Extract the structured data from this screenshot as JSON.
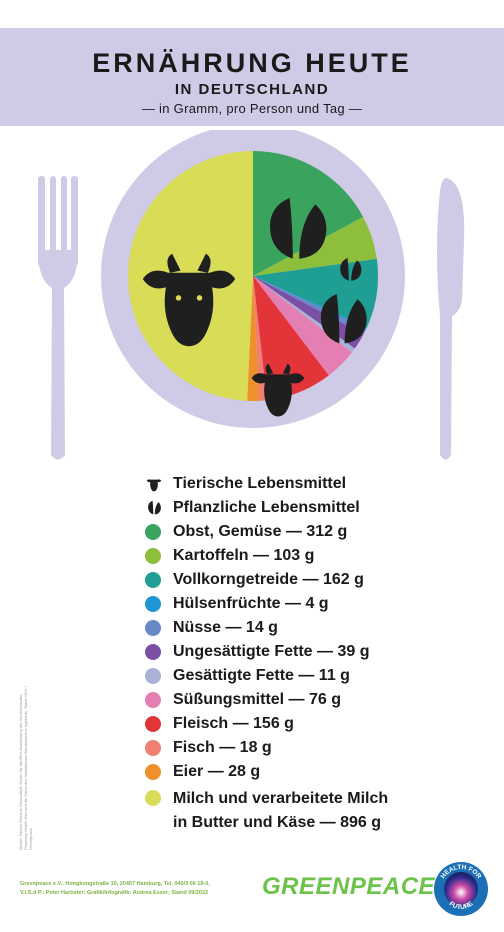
{
  "header": {
    "title": "ERNÄHRUNG HEUTE",
    "subtitle": "IN DEUTSCHLAND",
    "unit_line": "— in Gramm, pro Person und Tag —"
  },
  "colors": {
    "header_band": "#cfcbe6",
    "plate": "#cfcbe6",
    "cutlery": "#cfcbe6",
    "icon_dark": "#1f1f1f",
    "brand_green": "#6cc24a"
  },
  "legend": {
    "animal_label": "Tierische Lebensmittel",
    "plant_label": "Pflanzliche Lebensmittel",
    "animal_icon": "cow-head-icon",
    "plant_icon": "leaf-icon"
  },
  "chart_data": {
    "type": "pie",
    "unit": "g",
    "start": "12 o'clock, clockwise",
    "slices": [
      {
        "label": "Obst, Gemüse",
        "value": 312,
        "color": "#3aa35e",
        "group": "plant",
        "text": "Obst, Gemüse — 312 g"
      },
      {
        "label": "Kartoffeln",
        "value": 103,
        "color": "#8dbf3c",
        "group": "plant",
        "text": "Kartoffeln — 103 g"
      },
      {
        "label": "Vollkorngetreide",
        "value": 162,
        "color": "#1f9e94",
        "group": "plant",
        "text": "Vollkorngetreide — 162 g"
      },
      {
        "label": "Hülsenfrüchte",
        "value": 4,
        "color": "#2196d6",
        "group": "plant",
        "text": "Hülsenfrüchte — 4 g"
      },
      {
        "label": "Nüsse",
        "value": 14,
        "color": "#6a88c9",
        "group": "plant",
        "text": "Nüsse — 14 g"
      },
      {
        "label": "Ungesättigte Fette",
        "value": 39,
        "color": "#7b4fa3",
        "group": "plant",
        "text": "Ungesättigte Fette — 39 g"
      },
      {
        "label": "Gesättigte Fette",
        "value": 11,
        "color": "#a9b3d6",
        "group": "plant",
        "text": "Gesättigte Fette — 11 g"
      },
      {
        "label": "Süßungsmittel",
        "value": 76,
        "color": "#e37fb3",
        "group": "plant",
        "text": "Süßungsmittel — 76 g"
      },
      {
        "label": "Fleisch",
        "value": 156,
        "color": "#e3343a",
        "group": "animal",
        "text": "Fleisch — 156 g"
      },
      {
        "label": "Fisch",
        "value": 18,
        "color": "#ef7f73",
        "group": "animal",
        "text": "Fisch — 18 g"
      },
      {
        "label": "Eier",
        "value": 28,
        "color": "#f0902a",
        "group": "animal",
        "text": "Eier — 28 g"
      },
      {
        "label": "Milch und verarbeitete Milch in Butter und Käse",
        "value": 896,
        "color": "#d8dc57",
        "group": "animal",
        "text_line1": "Milch und verarbeitete Milch",
        "text_line2": "in Butter und Käse — 896 g"
      }
    ]
  },
  "footer": {
    "source_note": "Quelle: Dieses Bündnis Gesundheit; Essen für alle/Eine Auswertung der Verzehrsstudie; Planetary Health Diet und die Daten des Statistischen Bundesamtes, Agrarinfo, Stand 2021 | Greenpeace",
    "imprint_line1": "Greenpeace e.V., Hongkongstraße 10, 20457 Hamburg, Tel. 040/3 06 18-0,",
    "imprint_line2": "V.i.S.d.P.: Peter Harbster; Grafik/Infografik: Andrea Esser; Stand 09/2022",
    "logo_text": "GREENPEACE",
    "badge_text_top": "HEALTH FOR",
    "badge_text_bottom": "FUTURE"
  }
}
